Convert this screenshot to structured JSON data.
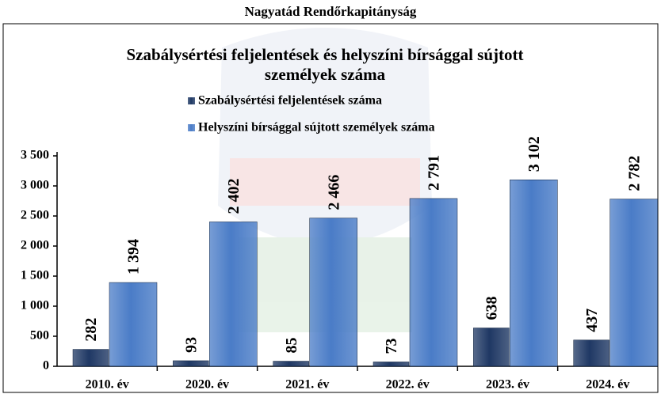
{
  "chart_data": {
    "type": "bar",
    "header": "Nagyatád Rendőrkapitányság",
    "title": [
      "Szabálysértési feljelentések és helyszíni bírsággal sújtott",
      "személyek száma"
    ],
    "categories": [
      "2010. év",
      "2020. év",
      "2021. év",
      "2022. év",
      "2023. év",
      "2024. év"
    ],
    "series": [
      {
        "name": "Szabálysértési feljelentések száma",
        "color": "#1f3864",
        "values": [
          282,
          93,
          85,
          73,
          638,
          437
        ],
        "value_labels": [
          "282",
          "93",
          "85",
          "73",
          "638",
          "437"
        ]
      },
      {
        "name": "Helyszíni bírsággal sújtott személyek száma",
        "color": "#4a7cc7",
        "values": [
          1394,
          2402,
          2466,
          2791,
          3102,
          2782
        ],
        "value_labels": [
          "1 394",
          "2 402",
          "2 466",
          "2 791",
          "3 102",
          "2 782"
        ]
      }
    ],
    "ylim": [
      0,
      3500
    ],
    "yticks": [
      0,
      500,
      {
        "value": 1000,
        "label": "1 000"
      },
      {
        "value": 1500,
        "label": "1 500"
      },
      {
        "value": 2000,
        "label": "2 000"
      },
      {
        "value": 2500,
        "label": "2 500"
      },
      {
        "value": 3000,
        "label": "3 000"
      },
      {
        "value": 3500,
        "label": "3 500"
      }
    ],
    "grid": false
  }
}
